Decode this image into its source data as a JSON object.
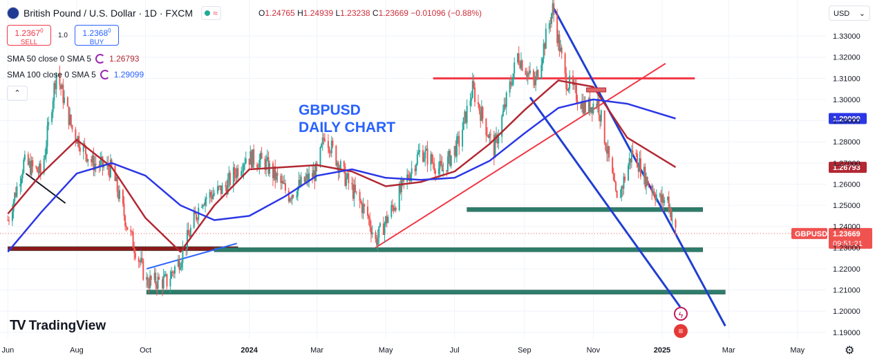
{
  "header": {
    "title": "British Pound / U.S. Dollar · 1D · FXCM",
    "ohlc": {
      "o_label": "O",
      "o": "1.24765",
      "h_label": "H",
      "h": "1.24939",
      "l_label": "L",
      "l": "1.23238",
      "c_label": "C",
      "c": "1.23669",
      "change": "−0.01096 (−0.88%)"
    }
  },
  "trade": {
    "sell_price": "1.2367",
    "sell_sup": "0",
    "sell_label": "SELL",
    "spread": "1.0",
    "buy_price": "1.2368",
    "buy_sup": "0",
    "buy_label": "BUY"
  },
  "indicators": [
    {
      "label": "SMA 50 close 0 SMA 5",
      "value": "1.26793",
      "color": "#b22833"
    },
    {
      "label": "SMA 100 close 0 SMA 5",
      "value": "1.29099",
      "color": "#2962ff"
    }
  ],
  "currency_select": "USD",
  "brand": "TradingView",
  "colors": {
    "up": "#26a69a",
    "down": "#ef5350",
    "sma50": "#b22833",
    "sma100": "#2b37e6",
    "trend": "#1f3fd1",
    "support": "#2e7d6b",
    "resistance": "#f23645",
    "annotation": "#2962ff"
  },
  "icons": {
    "collapse": "chevron-up-icon",
    "settings": "gear-icon",
    "event1": "lightning-icon",
    "event2": "us-flag-icon"
  },
  "chart_data": {
    "type": "candlestick",
    "annotation": [
      "GBPUSD",
      "DAILY CHART"
    ],
    "symbol_label": "GBPUSD",
    "last_price": "1.23669",
    "countdown": "09:51:21",
    "price_axis": {
      "ylim": [
        1.187,
        1.347
      ],
      "ticks": [
        "1.33000",
        "1.32000",
        "1.31000",
        "1.30000",
        "1.29000",
        "1.28000",
        "1.27000",
        "1.26000",
        "1.25000",
        "1.24000",
        "1.23000",
        "1.22000",
        "1.21000",
        "1.20000",
        "1.19000"
      ]
    },
    "time_axis": {
      "labels": [
        "Jun",
        "Aug",
        "Oct",
        "2024",
        "Mar",
        "May",
        "Jul",
        "Sep",
        "Nov",
        "2025",
        "Mar",
        "May"
      ],
      "bold": [
        "2024",
        "2025"
      ]
    },
    "price_tags": [
      {
        "value": "1.29099",
        "label": "1.29099",
        "color": "#2b37e6"
      },
      {
        "value": "1.26793",
        "label": "1.26793",
        "color": "#b22833"
      }
    ],
    "candle_close_path": [
      [
        "2023-06-01",
        1.243
      ],
      [
        "2023-06-15",
        1.27
      ],
      [
        "2023-07-01",
        1.265
      ],
      [
        "2023-07-14",
        1.313
      ],
      [
        "2023-07-28",
        1.286
      ],
      [
        "2023-08-15",
        1.27
      ],
      [
        "2023-09-01",
        1.267
      ],
      [
        "2023-09-15",
        1.24
      ],
      [
        "2023-10-02",
        1.214
      ],
      [
        "2023-10-20",
        1.214
      ],
      [
        "2023-11-01",
        1.225
      ],
      [
        "2023-11-20",
        1.253
      ],
      [
        "2023-12-10",
        1.258
      ],
      [
        "2023-12-29",
        1.273
      ],
      [
        "2024-01-15",
        1.27
      ],
      [
        "2024-02-05",
        1.255
      ],
      [
        "2024-03-01",
        1.266
      ],
      [
        "2024-03-08",
        1.284
      ],
      [
        "2024-03-25",
        1.264
      ],
      [
        "2024-04-15",
        1.245
      ],
      [
        "2024-04-22",
        1.233
      ],
      [
        "2024-05-10",
        1.252
      ],
      [
        "2024-06-01",
        1.276
      ],
      [
        "2024-06-20",
        1.266
      ],
      [
        "2024-07-05",
        1.28
      ],
      [
        "2024-07-17",
        1.305
      ],
      [
        "2024-08-05",
        1.276
      ],
      [
        "2024-08-26",
        1.321
      ],
      [
        "2024-09-10",
        1.307
      ],
      [
        "2024-09-26",
        1.343
      ],
      [
        "2024-10-07",
        1.31
      ],
      [
        "2024-10-25",
        1.296
      ],
      [
        "2024-11-05",
        1.299
      ],
      [
        "2024-11-22",
        1.251
      ],
      [
        "2024-12-06",
        1.276
      ],
      [
        "2024-12-18",
        1.262
      ],
      [
        "2024-12-31",
        1.252
      ],
      [
        "2025-01-06",
        1.253
      ],
      [
        "2025-01-13",
        1.237
      ]
    ],
    "sma50_path": [
      [
        "2023-06-01",
        1.246
      ],
      [
        "2023-07-01",
        1.265
      ],
      [
        "2023-08-01",
        1.281
      ],
      [
        "2023-09-01",
        1.268
      ],
      [
        "2023-10-01",
        1.244
      ],
      [
        "2023-11-01",
        1.228
      ],
      [
        "2023-12-01",
        1.25
      ],
      [
        "2024-01-01",
        1.267
      ],
      [
        "2024-02-01",
        1.268
      ],
      [
        "2024-03-01",
        1.269
      ],
      [
        "2024-04-01",
        1.266
      ],
      [
        "2024-05-01",
        1.259
      ],
      [
        "2024-06-01",
        1.261
      ],
      [
        "2024-07-01",
        1.266
      ],
      [
        "2024-08-01",
        1.279
      ],
      [
        "2024-09-01",
        1.295
      ],
      [
        "2024-10-01",
        1.309
      ],
      [
        "2024-11-01",
        1.306
      ],
      [
        "2024-12-01",
        1.282
      ],
      [
        "2025-01-13",
        1.268
      ]
    ],
    "sma100_path": [
      [
        "2023-06-01",
        1.228
      ],
      [
        "2023-07-01",
        1.247
      ],
      [
        "2023-08-01",
        1.265
      ],
      [
        "2023-09-01",
        1.27
      ],
      [
        "2023-10-01",
        1.264
      ],
      [
        "2023-11-01",
        1.25
      ],
      [
        "2023-12-01",
        1.243
      ],
      [
        "2024-01-01",
        1.245
      ],
      [
        "2024-02-01",
        1.254
      ],
      [
        "2024-03-01",
        1.264
      ],
      [
        "2024-04-01",
        1.267
      ],
      [
        "2024-05-01",
        1.263
      ],
      [
        "2024-06-01",
        1.262
      ],
      [
        "2024-07-01",
        1.263
      ],
      [
        "2024-08-01",
        1.271
      ],
      [
        "2024-09-01",
        1.284
      ],
      [
        "2024-10-01",
        1.296
      ],
      [
        "2024-11-01",
        1.3
      ],
      [
        "2024-12-01",
        1.298
      ],
      [
        "2025-01-13",
        1.291
      ]
    ],
    "drawings": [
      {
        "type": "support",
        "from": "2023-06-01",
        "to": "2023-12-22",
        "y": 1.2295,
        "color": "#8b1a1a"
      },
      {
        "type": "support",
        "from": "2023-12-01",
        "to": "2025-02-06",
        "y": 1.229,
        "color": "#2e7d6b"
      },
      {
        "type": "support",
        "from": "2023-10-02",
        "to": "2025-02-26",
        "y": 1.209,
        "color": "#2e7d6b"
      },
      {
        "type": "support",
        "from": "2024-07-12",
        "to": "2025-02-06",
        "y": 1.248,
        "color": "#2e7d6b"
      },
      {
        "type": "resistance",
        "from": "2024-06-12",
        "to": "2025-01-30",
        "y": 1.31,
        "color": "#f23645"
      },
      {
        "type": "trendline",
        "from": [
          "2024-04-22",
          1.23
        ],
        "to": [
          "2025-01-04",
          1.317
        ],
        "color": "#f23645"
      },
      {
        "type": "channel",
        "from": [
          "2024-09-26",
          1.344
        ],
        "to": [
          "2025-02-26",
          1.193
        ],
        "color": "#1f3fd1"
      },
      {
        "type": "channel",
        "from": [
          "2024-09-06",
          1.301
        ],
        "to": [
          "2025-01-17",
          1.202
        ],
        "color": "#1f3fd1"
      },
      {
        "type": "trendline",
        "from": [
          "2023-10-02",
          1.22
        ],
        "to": [
          "2023-12-21",
          1.232
        ],
        "color": "#2962ff"
      },
      {
        "type": "trendline",
        "from": [
          "2023-06-17",
          1.265
        ],
        "to": [
          "2023-07-22",
          1.251
        ],
        "color": "#131722"
      }
    ]
  }
}
